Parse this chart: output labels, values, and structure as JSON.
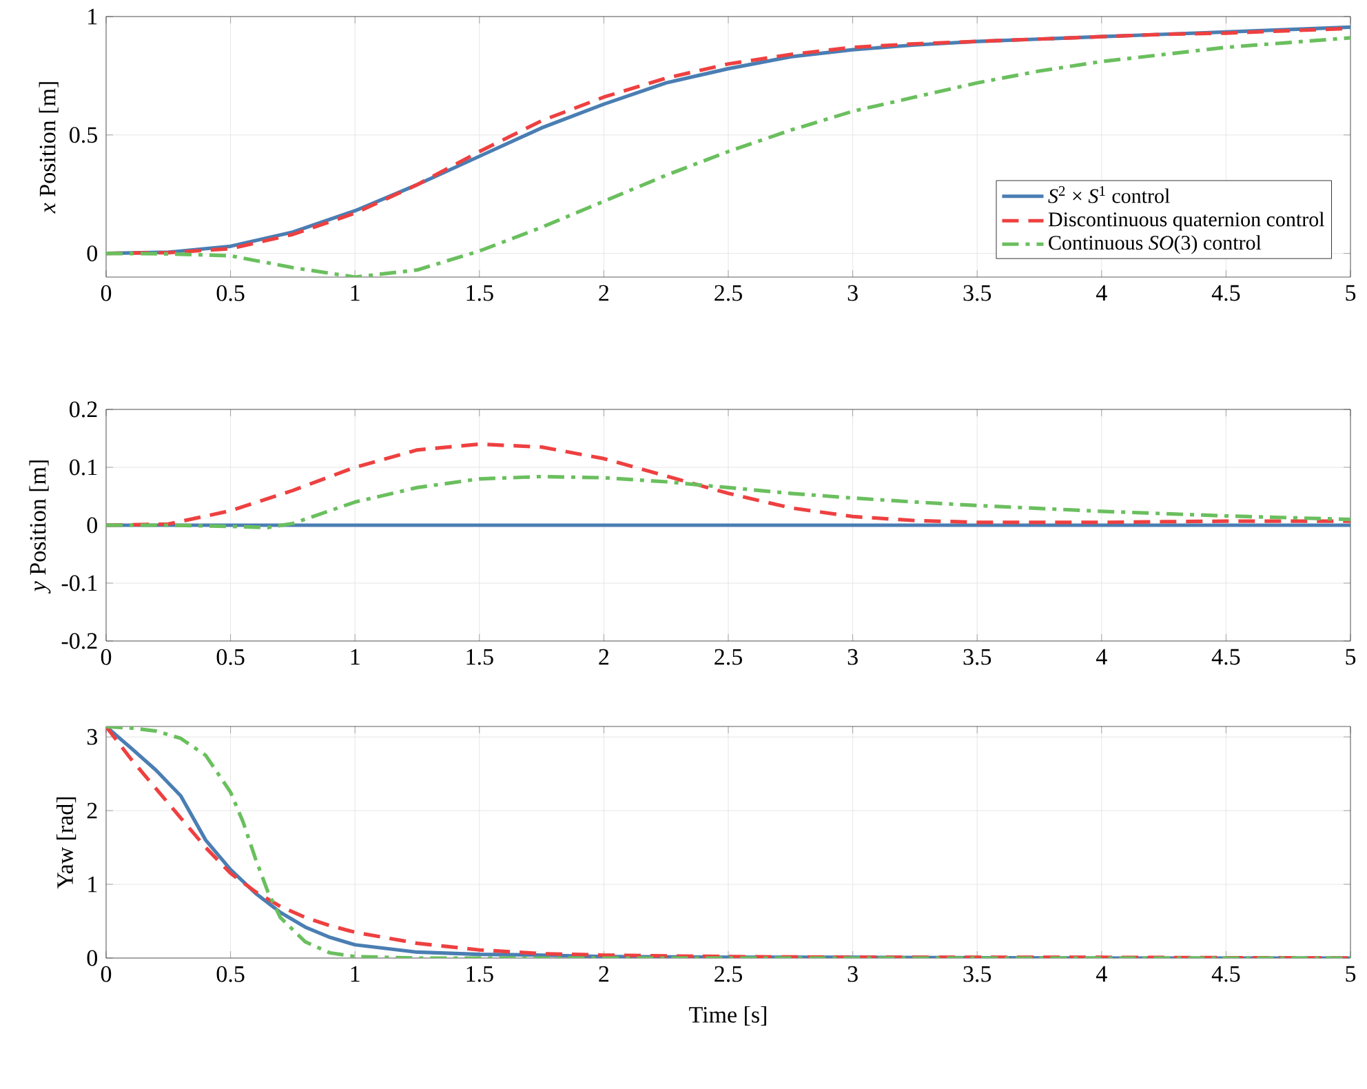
{
  "chart_data": [
    {
      "type": "line",
      "ylabel": "*x* Position [m]",
      "xlim": [
        0,
        5
      ],
      "xticks": [
        0,
        0.5,
        1,
        1.5,
        2,
        2.5,
        3,
        3.5,
        4,
        4.5,
        5
      ],
      "ylim": [
        -0.1,
        1
      ],
      "yticks": [
        0,
        0.5,
        1
      ],
      "grid": true,
      "legend": "bottom right",
      "series": [
        {
          "name": "*S*$^{2}$ × *S*$^{1}$ control",
          "color": "#4a7eb3",
          "line_style": "solid",
          "x": [
            0,
            0.25,
            0.5,
            0.75,
            1,
            1.25,
            1.5,
            1.75,
            2,
            2.25,
            2.5,
            2.75,
            3,
            3.25,
            3.5,
            3.75,
            4,
            4.25,
            4.5,
            4.75,
            5
          ],
          "values": [
            0,
            0.005,
            0.03,
            0.09,
            0.18,
            0.29,
            0.41,
            0.53,
            0.63,
            0.72,
            0.78,
            0.83,
            0.86,
            0.88,
            0.895,
            0.905,
            0.915,
            0.925,
            0.935,
            0.945,
            0.955
          ]
        },
        {
          "name": "Discontinuous quaternion control",
          "color": "#ee4040",
          "line_style": "dashed",
          "x": [
            0,
            0.25,
            0.5,
            0.75,
            1,
            1.25,
            1.5,
            1.75,
            2,
            2.25,
            2.5,
            2.75,
            3,
            3.25,
            3.5,
            3.75,
            4,
            4.25,
            4.5,
            4.75,
            5
          ],
          "values": [
            0,
            0.003,
            0.02,
            0.08,
            0.17,
            0.29,
            0.43,
            0.56,
            0.66,
            0.74,
            0.8,
            0.84,
            0.87,
            0.885,
            0.895,
            0.905,
            0.915,
            0.925,
            0.93,
            0.94,
            0.95
          ]
        },
        {
          "name": "Continuous *SO*(3) control",
          "color": "#6abf5e",
          "line_style": "dashdot",
          "x": [
            0,
            0.25,
            0.5,
            0.75,
            1,
            1.25,
            1.5,
            1.75,
            2,
            2.25,
            2.5,
            2.75,
            3,
            3.25,
            3.5,
            3.75,
            4,
            4.25,
            4.5,
            4.75,
            5
          ],
          "values": [
            0,
            -0.002,
            -0.01,
            -0.06,
            -0.1,
            -0.07,
            0.01,
            0.11,
            0.22,
            0.33,
            0.43,
            0.52,
            0.6,
            0.66,
            0.72,
            0.77,
            0.81,
            0.84,
            0.87,
            0.89,
            0.91
          ]
        }
      ]
    },
    {
      "type": "line",
      "ylabel": "*y* Position [m]",
      "xlim": [
        0,
        5
      ],
      "xticks": [
        0,
        0.5,
        1,
        1.5,
        2,
        2.5,
        3,
        3.5,
        4,
        4.5,
        5
      ],
      "ylim": [
        -0.2,
        0.2
      ],
      "yticks": [
        -0.2,
        -0.1,
        0,
        0.1,
        0.2
      ],
      "grid": true,
      "series": [
        {
          "color": "#4a7eb3",
          "line_style": "solid",
          "x": [
            0,
            5
          ],
          "values": [
            0,
            0
          ]
        },
        {
          "color": "#ee4040",
          "line_style": "dashed",
          "x": [
            0,
            0.25,
            0.5,
            0.75,
            1,
            1.25,
            1.5,
            1.75,
            2,
            2.25,
            2.5,
            2.75,
            3,
            3.25,
            3.5,
            3.75,
            4,
            4.25,
            4.5,
            4.75,
            5
          ],
          "values": [
            0,
            0.002,
            0.025,
            0.06,
            0.1,
            0.13,
            0.14,
            0.135,
            0.115,
            0.085,
            0.055,
            0.03,
            0.015,
            0.008,
            0.005,
            0.005,
            0.005,
            0.006,
            0.007,
            0.007,
            0.007
          ]
        },
        {
          "color": "#6abf5e",
          "line_style": "dashdot",
          "x": [
            0,
            0.25,
            0.5,
            0.65,
            0.75,
            1,
            1.25,
            1.5,
            1.75,
            2,
            2.25,
            2.5,
            2.75,
            3,
            3.25,
            3.5,
            3.75,
            4,
            4.25,
            4.5,
            4.75,
            5
          ],
          "values": [
            0,
            0,
            -0.002,
            -0.004,
            0.003,
            0.04,
            0.065,
            0.08,
            0.084,
            0.082,
            0.075,
            0.065,
            0.055,
            0.047,
            0.04,
            0.034,
            0.029,
            0.024,
            0.02,
            0.016,
            0.013,
            0.01
          ]
        }
      ]
    },
    {
      "type": "line",
      "xlabel": "Time [s]",
      "ylabel": "Yaw [rad]",
      "xlim": [
        0,
        5
      ],
      "xticks": [
        0,
        0.5,
        1,
        1.5,
        2,
        2.5,
        3,
        3.5,
        4,
        4.5,
        5
      ],
      "ylim": [
        0,
        3.1416
      ],
      "yticks": [
        0,
        1,
        2,
        3
      ],
      "grid": true,
      "series": [
        {
          "color": "#4a7eb3",
          "line_style": "solid",
          "x": [
            0,
            0.1,
            0.2,
            0.3,
            0.4,
            0.5,
            0.6,
            0.7,
            0.8,
            0.9,
            1,
            1.25,
            1.5,
            1.75,
            2,
            2.5,
            3,
            4,
            5
          ],
          "values": [
            3.14,
            2.85,
            2.55,
            2.2,
            1.6,
            1.2,
            0.88,
            0.62,
            0.42,
            0.28,
            0.18,
            0.08,
            0.05,
            0.04,
            0.02,
            0.01,
            0.01,
            0,
            0
          ]
        },
        {
          "color": "#ee4040",
          "line_style": "dashed",
          "x": [
            0,
            0.1,
            0.2,
            0.3,
            0.4,
            0.5,
            0.6,
            0.7,
            0.8,
            0.9,
            1,
            1.25,
            1.5,
            1.75,
            2,
            2.5,
            3,
            4,
            5
          ],
          "values": [
            3.14,
            2.7,
            2.3,
            1.9,
            1.5,
            1.15,
            0.9,
            0.7,
            0.55,
            0.44,
            0.35,
            0.2,
            0.11,
            0.06,
            0.04,
            0.02,
            0.01,
            0.01,
            0
          ]
        },
        {
          "color": "#6abf5e",
          "line_style": "dashdot",
          "x": [
            0,
            0.1,
            0.2,
            0.3,
            0.4,
            0.5,
            0.55,
            0.6,
            0.65,
            0.7,
            0.8,
            0.9,
            1,
            1.25,
            1.5,
            5
          ],
          "values": [
            3.14,
            3.12,
            3.08,
            2.98,
            2.75,
            2.25,
            1.85,
            1.35,
            0.9,
            0.55,
            0.22,
            0.07,
            0.02,
            0,
            0,
            0
          ]
        }
      ]
    }
  ]
}
